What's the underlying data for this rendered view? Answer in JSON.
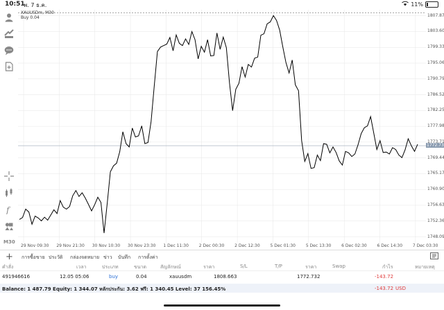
{
  "status_bar": {
    "time": "10:51",
    "date": "พ. 7 ธ.ค.",
    "battery": "11%"
  },
  "chart": {
    "symbol_line": "XAUUSDm, M30",
    "order_line": "Buy 0.04",
    "current_price": "1772.732",
    "colors": {
      "line": "#000000",
      "grid": "#e6e6e6",
      "order_line": "#8a8a8a",
      "current_tag": "#8a9bb0"
    }
  },
  "chart_data": {
    "type": "line",
    "symbol": "XAUUSDm",
    "timeframe": "M30",
    "y_ticks": [
      "1807.870",
      "1803.600",
      "1799.330",
      "1795.060",
      "1790.790",
      "1786.520",
      "1782.250",
      "1777.980",
      "1773.710",
      "1769.440",
      "1765.170",
      "1760.900",
      "1756.630",
      "1752.360",
      "1748.090"
    ],
    "x_ticks": [
      "29 Nov 09:30",
      "29 Nov 21:30",
      "30 Nov 10:30",
      "30 Nov 23:30",
      "1 Dec 11:30",
      "2 Dec 00:30",
      "2 Dec 12:30",
      "5 Dec 01:30",
      "5 Dec 13:30",
      "6 Dec 02:30",
      "6 Dec 14:30",
      "7 Dec 03:30"
    ],
    "ylim": [
      1746.5,
      1809.5
    ],
    "order_price": 1808.663,
    "current_price": 1772.732,
    "grid": true,
    "series": [
      {
        "values": [
          1752.8,
          1753.3,
          1755.6,
          1754.8,
          1751.5,
          1753.7,
          1753.2,
          1752.4,
          1753.4,
          1752.6,
          1754.0,
          1755.4,
          1754.4,
          1757.9,
          1756.1,
          1755.6,
          1756.3,
          1759.2,
          1760.6,
          1759.0,
          1760.0,
          1758.6,
          1756.9,
          1755.1,
          1756.8,
          1758.8,
          1757.4,
          1749.1,
          1757.2,
          1765.7,
          1767.3,
          1768.0,
          1771.1,
          1776.5,
          1773.3,
          1772.4,
          1777.5,
          1775.1,
          1775.4,
          1778.1,
          1773.3,
          1773.6,
          1779.3,
          1788.8,
          1798.2,
          1799.4,
          1799.8,
          1800.2,
          1802.0,
          1798.4,
          1802.7,
          1800.4,
          1799.8,
          1801.6,
          1800.1,
          1803.6,
          1801.4,
          1796.2,
          1799.6,
          1798.0,
          1801.4,
          1797.0,
          1797.1,
          1803.2,
          1798.8,
          1802.1,
          1799.2,
          1789.7,
          1782.2,
          1788.0,
          1789.6,
          1794.1,
          1791.3,
          1794.7,
          1794.0,
          1796.4,
          1796.7,
          1802.6,
          1803.0,
          1805.7,
          1806.2,
          1807.9,
          1806.6,
          1804.0,
          1799.4,
          1795.2,
          1792.4,
          1795.9,
          1789.2,
          1787.6,
          1774.1,
          1768.5,
          1770.6,
          1766.6,
          1766.8,
          1770.2,
          1768.7,
          1773.3,
          1773.1,
          1770.8,
          1772.4,
          1770.9,
          1768.6,
          1767.5,
          1771.2,
          1770.8,
          1769.8,
          1770.5,
          1773.0,
          1776.0,
          1777.6,
          1778.1,
          1780.6,
          1776.2,
          1771.7,
          1774.1,
          1770.9,
          1771.0,
          1770.5,
          1772.2,
          1771.7,
          1770.2,
          1769.5,
          1771.6,
          1774.6,
          1772.7,
          1771.2,
          1773.1
        ]
      }
    ]
  },
  "tabs": {
    "items": [
      {
        "label": "การซื้อขาย",
        "active": true
      },
      {
        "label": "ประวัติ",
        "active": false
      },
      {
        "label": "กล่องจดหมาย",
        "active": false
      },
      {
        "label": "ข่าว",
        "active": false
      },
      {
        "label": "บันทึก",
        "active": false
      },
      {
        "label": "การตั้งค่า",
        "active": false
      }
    ]
  },
  "table": {
    "headers": [
      "คำสั่ง",
      "เวลา",
      "ประเภท",
      "ขนาด",
      "สัญลักษณ์",
      "ราคา",
      "S/L",
      "T/P",
      "ราคา",
      "Swap",
      "กำไร",
      "หมายเหตุ"
    ],
    "row": {
      "order": "491946616",
      "time": "12.05 05:06",
      "type": "buy",
      "size": "0.04",
      "symbol": "xauusdm",
      "open_price": "1808.663",
      "sl": "",
      "tp": "",
      "price": "1772.732",
      "swap": "",
      "profit": "-143.72",
      "comment": ""
    }
  },
  "balance": {
    "text": "Balance: 1 487.79 Equity: 1 344.07 หลักประกัน: 3.62 ฟรี: 1 340.45 Level: 37 156.45%",
    "profit": "-143.72",
    "currency": "USD"
  }
}
